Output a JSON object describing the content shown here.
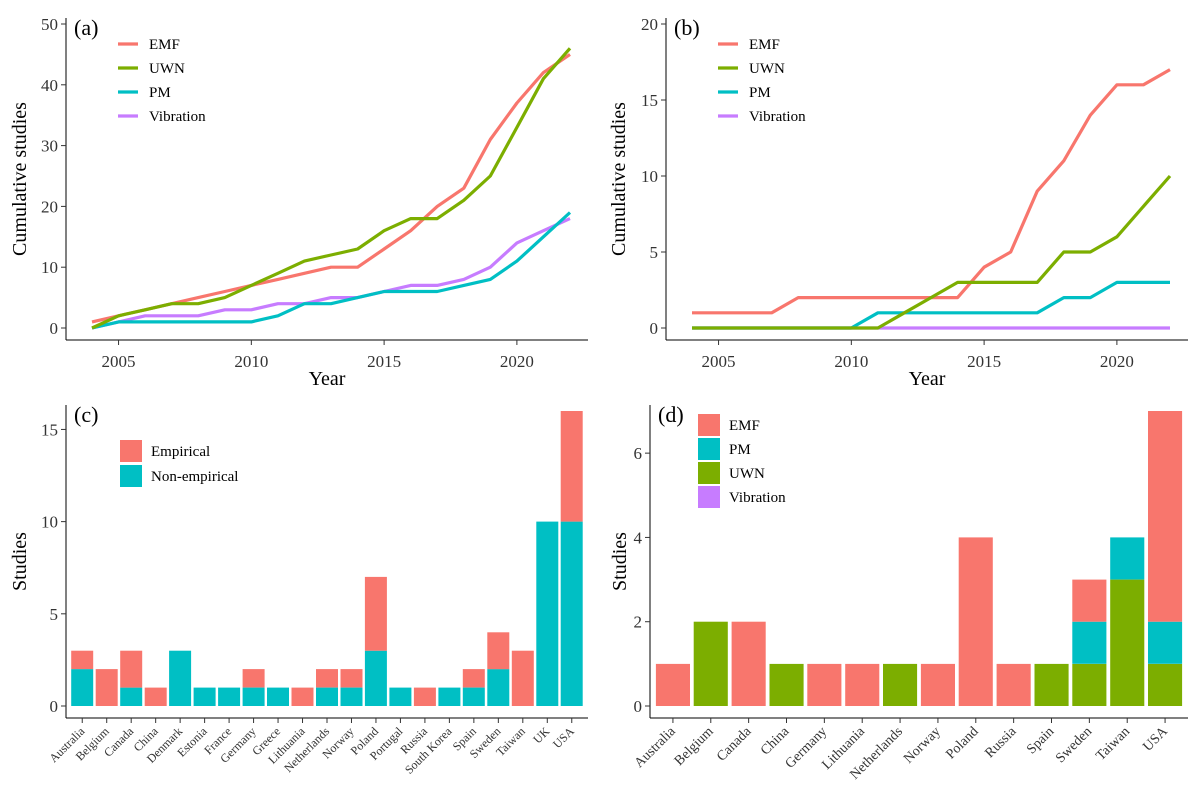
{
  "colors": {
    "EMF": "#F8766D",
    "UWN": "#7CAE00",
    "PM": "#00BFC4",
    "Vibration": "#C77CFF",
    "Empirical": "#F8766D",
    "Non-empirical": "#00BFC4"
  },
  "chart_data": [
    {
      "id": "a",
      "type": "line",
      "panel_label": "(a)",
      "xlabel": "Year",
      "ylabel": "Cumulative studies",
      "xlim": [
        2004,
        2022
      ],
      "ylim": [
        0,
        50
      ],
      "xticks": [
        2005,
        2010,
        2015,
        2020
      ],
      "yticks": [
        0,
        10,
        20,
        30,
        40,
        50
      ],
      "legend_position": "top-left",
      "x": [
        2004,
        2005,
        2006,
        2007,
        2008,
        2009,
        2010,
        2011,
        2012,
        2013,
        2014,
        2015,
        2016,
        2017,
        2018,
        2019,
        2020,
        2021,
        2022
      ],
      "series": [
        {
          "name": "EMF",
          "values": [
            1,
            2,
            3,
            4,
            5,
            6,
            7,
            8,
            9,
            10,
            10,
            13,
            16,
            20,
            23,
            31,
            37,
            42,
            45
          ]
        },
        {
          "name": "UWN",
          "values": [
            0,
            2,
            3,
            4,
            4,
            5,
            7,
            9,
            11,
            12,
            13,
            16,
            18,
            18,
            21,
            25,
            33,
            41,
            46
          ]
        },
        {
          "name": "PM",
          "values": [
            0,
            1,
            1,
            1,
            1,
            1,
            1,
            2,
            4,
            4,
            5,
            6,
            6,
            6,
            7,
            8,
            11,
            15,
            19
          ]
        },
        {
          "name": "Vibration",
          "values": [
            0,
            1,
            2,
            2,
            2,
            3,
            3,
            4,
            4,
            5,
            5,
            6,
            7,
            7,
            8,
            10,
            14,
            16,
            18
          ]
        }
      ]
    },
    {
      "id": "b",
      "type": "line",
      "panel_label": "(b)",
      "xlabel": "Year",
      "ylabel": "Cumulative studies",
      "xlim": [
        2004,
        2022
      ],
      "ylim": [
        0,
        20
      ],
      "xticks": [
        2005,
        2010,
        2015,
        2020
      ],
      "yticks": [
        0,
        5,
        10,
        15,
        20
      ],
      "legend_position": "top-left",
      "x": [
        2004,
        2005,
        2006,
        2007,
        2008,
        2009,
        2010,
        2011,
        2012,
        2013,
        2014,
        2015,
        2016,
        2017,
        2018,
        2019,
        2020,
        2021,
        2022
      ],
      "series": [
        {
          "name": "EMF",
          "values": [
            1,
            1,
            1,
            1,
            2,
            2,
            2,
            2,
            2,
            2,
            2,
            4,
            5,
            9,
            11,
            14,
            16,
            16,
            17
          ]
        },
        {
          "name": "UWN",
          "values": [
            0,
            0,
            0,
            0,
            0,
            0,
            0,
            0,
            1,
            2,
            3,
            3,
            3,
            3,
            5,
            5,
            6,
            8,
            10
          ]
        },
        {
          "name": "PM",
          "values": [
            0,
            0,
            0,
            0,
            0,
            0,
            0,
            1,
            1,
            1,
            1,
            1,
            1,
            1,
            2,
            2,
            3,
            3,
            3
          ]
        },
        {
          "name": "Vibration",
          "values": [
            0,
            0,
            0,
            0,
            0,
            0,
            0,
            0,
            0,
            0,
            0,
            0,
            0,
            0,
            0,
            0,
            0,
            0,
            0
          ]
        }
      ]
    },
    {
      "id": "c",
      "type": "bar",
      "stacked": true,
      "panel_label": "(c)",
      "ylabel": "Studies",
      "ylim": [
        0,
        16
      ],
      "yticks": [
        0,
        5,
        10,
        15
      ],
      "legend_position": "top-left",
      "categories": [
        "Australia",
        "Belgium",
        "Canada",
        "China",
        "Denmark",
        "Estonia",
        "France",
        "Germany",
        "Greece",
        "Lithuania",
        "Netherlands",
        "Norway",
        "Poland",
        "Portugal",
        "Russia",
        "South Korea",
        "Spain",
        "Sweden",
        "Taiwan",
        "UK",
        "USA"
      ],
      "series": [
        {
          "name": "Non-empirical",
          "values": [
            2,
            0,
            1,
            0,
            3,
            1,
            1,
            1,
            1,
            0,
            1,
            1,
            3,
            1,
            0,
            1,
            1,
            2,
            0,
            10,
            10
          ]
        },
        {
          "name": "Empirical",
          "values": [
            1,
            2,
            2,
            1,
            0,
            0,
            0,
            1,
            0,
            1,
            1,
            1,
            4,
            0,
            1,
            0,
            1,
            2,
            3,
            0,
            6
          ]
        }
      ],
      "legend_order": [
        "Empirical",
        "Non-empirical"
      ]
    },
    {
      "id": "d",
      "type": "bar",
      "stacked": true,
      "panel_label": "(d)",
      "ylabel": "Studies",
      "ylim": [
        0,
        7
      ],
      "yticks": [
        0,
        2,
        4,
        6
      ],
      "legend_position": "top-left",
      "categories": [
        "Australia",
        "Belgium",
        "Canada",
        "China",
        "Germany",
        "Lithuania",
        "Netherlands",
        "Norway",
        "Poland",
        "Russia",
        "Spain",
        "Sweden",
        "Taiwan",
        "USA"
      ],
      "series": [
        {
          "name": "UWN",
          "values": [
            0,
            2,
            0,
            1,
            0,
            0,
            1,
            0,
            0,
            0,
            1,
            1,
            3,
            1
          ]
        },
        {
          "name": "PM",
          "values": [
            0,
            0,
            0,
            0,
            0,
            0,
            0,
            0,
            0,
            0,
            0,
            1,
            1,
            1
          ]
        },
        {
          "name": "EMF",
          "values": [
            1,
            0,
            2,
            0,
            1,
            1,
            0,
            1,
            4,
            1,
            0,
            1,
            0,
            5
          ]
        },
        {
          "name": "Vibration",
          "values": [
            0,
            0,
            0,
            0,
            0,
            0,
            0,
            0,
            0,
            0,
            0,
            0,
            0,
            0
          ]
        }
      ],
      "legend_order": [
        "EMF",
        "PM",
        "UWN",
        "Vibration"
      ]
    }
  ]
}
